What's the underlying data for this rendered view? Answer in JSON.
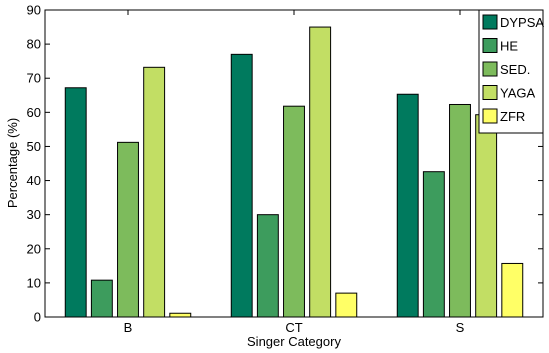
{
  "chart_data": {
    "type": "bar",
    "title": "",
    "xlabel": "Singer Category",
    "ylabel": "Percentage (%)",
    "categories": [
      "B",
      "CT",
      "S"
    ],
    "ylim": [
      0,
      90
    ],
    "yticks": [
      "0",
      "10",
      "20",
      "30",
      "40",
      "50",
      "60",
      "70",
      "80",
      "90"
    ],
    "grid": false,
    "legend_position": "top-right",
    "series": [
      {
        "name": "DYPSA",
        "color": "#007a5e",
        "values": [
          67.2,
          77.0,
          65.3
        ]
      },
      {
        "name": "HE",
        "color": "#3d9c5d",
        "values": [
          10.8,
          30.0,
          42.6
        ]
      },
      {
        "name": "SED.",
        "color": "#7dbb5c",
        "values": [
          51.2,
          61.8,
          62.3
        ]
      },
      {
        "name": "YAGA",
        "color": "#c2de64",
        "values": [
          73.2,
          85.0,
          59.3
        ]
      },
      {
        "name": "ZFR",
        "color": "#ffff66",
        "values": [
          1.1,
          7.0,
          15.7
        ]
      }
    ]
  }
}
